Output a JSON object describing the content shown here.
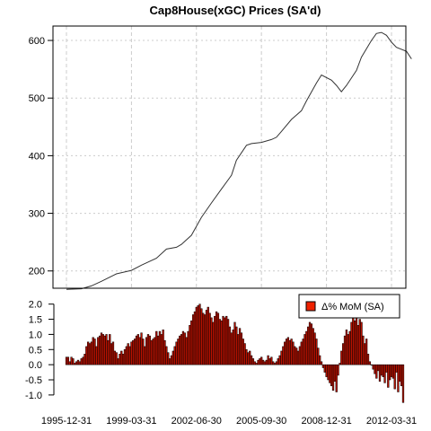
{
  "chart_data": [
    {
      "type": "line",
      "title": "Cap8House(xGC) Prices (SA'd)",
      "ylim": [
        170,
        625
      ],
      "yticks": [
        200,
        300,
        400,
        500,
        600
      ],
      "x_range": [
        "1995-12-31",
        "2013-05-31"
      ],
      "grid": true,
      "colors": {
        "line": "#333333",
        "grid": "#cccccc"
      },
      "series": [
        {
          "points": [
            [
              "1995-12-31",
              168
            ],
            [
              "1996-09-30",
              169
            ],
            [
              "1997-03-31",
              174
            ],
            [
              "1997-09-30",
              182
            ],
            [
              "1998-06-30",
              195
            ],
            [
              "1999-03-31",
              201
            ],
            [
              "1999-09-30",
              210
            ],
            [
              "2000-06-30",
              222
            ],
            [
              "2000-12-31",
              238
            ],
            [
              "2001-06-30",
              241
            ],
            [
              "2001-09-30",
              246
            ],
            [
              "2002-03-31",
              262
            ],
            [
              "2002-09-30",
              293
            ],
            [
              "2003-03-31",
              318
            ],
            [
              "2003-09-30",
              342
            ],
            [
              "2004-03-31",
              366
            ],
            [
              "2004-06-30",
              392
            ],
            [
              "2004-12-31",
              418
            ],
            [
              "2005-03-31",
              421
            ],
            [
              "2005-09-30",
              423
            ],
            [
              "2006-03-31",
              428
            ],
            [
              "2006-06-30",
              432
            ],
            [
              "2006-09-30",
              442
            ],
            [
              "2007-03-31",
              463
            ],
            [
              "2007-09-30",
              478
            ],
            [
              "2007-12-31",
              495
            ],
            [
              "2008-06-30",
              526
            ],
            [
              "2008-09-30",
              540
            ],
            [
              "2009-03-31",
              531
            ],
            [
              "2009-06-30",
              522
            ],
            [
              "2009-09-30",
              511
            ],
            [
              "2009-12-31",
              522
            ],
            [
              "2010-06-30",
              548
            ],
            [
              "2010-09-30",
              571
            ],
            [
              "2011-03-31",
              600
            ],
            [
              "2011-06-30",
              612
            ],
            [
              "2011-09-30",
              614
            ],
            [
              "2011-12-31",
              609
            ],
            [
              "2012-03-31",
              597
            ],
            [
              "2012-06-30",
              588
            ],
            [
              "2012-12-31",
              581
            ],
            [
              "2013-03-31",
              568
            ]
          ]
        }
      ]
    },
    {
      "type": "bar",
      "legend": "Δ% MoM (SA)",
      "legend_position": "top-right",
      "ylim": [
        -1.3,
        2.05
      ],
      "yticks": [
        "2.0",
        "1.5",
        "1.0",
        "0.5",
        "0.0",
        "-0.5",
        "-1.0"
      ],
      "xticks": [
        "1995-12-31",
        "1999-03-31",
        "2002-06-30",
        "2005-09-30",
        "2008-12-31",
        "2012-03-31"
      ],
      "start": "1995-12",
      "colors": {
        "bar": "#bb1100",
        "edge": "#000000",
        "legend_fill": "#ee2200"
      },
      "values": [
        0.25,
        0.25,
        0.1,
        0.25,
        0.2,
        0.05,
        0.1,
        0.15,
        0.1,
        0.2,
        0.25,
        0.35,
        0.6,
        0.75,
        0.7,
        0.75,
        0.9,
        0.85,
        0.6,
        0.9,
        0.95,
        1.05,
        1.0,
        0.95,
        1.0,
        0.8,
        1.0,
        0.7,
        0.75,
        0.45,
        0.4,
        0.2,
        0.35,
        0.45,
        0.35,
        0.5,
        0.6,
        0.7,
        0.6,
        0.75,
        0.8,
        0.85,
        0.95,
        1.0,
        0.9,
        1.05,
        0.85,
        0.6,
        0.9,
        1.0,
        0.95,
        0.8,
        0.85,
        0.9,
        1.1,
        0.95,
        1.1,
        1.0,
        1.15,
        0.8,
        0.6,
        0.4,
        0.2,
        0.3,
        0.45,
        0.6,
        0.75,
        0.85,
        0.95,
        1.0,
        1.1,
        1.05,
        0.9,
        1.1,
        1.3,
        1.45,
        1.65,
        1.75,
        1.9,
        1.95,
        2.0,
        1.85,
        1.7,
        1.65,
        1.8,
        1.9,
        1.7,
        1.55,
        1.4,
        1.6,
        1.75,
        1.7,
        1.5,
        1.45,
        1.6,
        1.55,
        1.6,
        1.5,
        1.25,
        1.05,
        1.15,
        1.4,
        1.25,
        1.0,
        1.2,
        1.05,
        0.85,
        0.7,
        0.5,
        0.4,
        0.45,
        0.3,
        0.2,
        0.1,
        0.05,
        0.15,
        0.2,
        0.25,
        0.15,
        0.1,
        0.15,
        0.3,
        0.2,
        0.25,
        0.1,
        0.05,
        0.1,
        0.2,
        0.3,
        0.45,
        0.6,
        0.75,
        0.85,
        0.9,
        0.8,
        0.85,
        0.75,
        0.6,
        0.55,
        0.45,
        0.6,
        0.75,
        0.85,
        1.0,
        1.1,
        1.25,
        1.4,
        1.35,
        1.2,
        1.05,
        0.85,
        0.55,
        0.3,
        0.1,
        -0.1,
        -0.25,
        -0.4,
        -0.5,
        -0.6,
        -0.7,
        -0.85,
        -0.55,
        -0.9,
        -0.35,
        0.05,
        0.45,
        0.7,
        0.95,
        1.15,
        1.0,
        1.1,
        1.4,
        1.55,
        1.45,
        1.75,
        1.3,
        1.5,
        1.4,
        0.95,
        0.7,
        0.85,
        0.35,
        0.1,
        0.0,
        -0.15,
        -0.3,
        -0.45,
        -0.2,
        -0.55,
        -0.35,
        -0.4,
        -0.6,
        -0.25,
        -0.75,
        -0.5,
        -0.4,
        -0.45,
        -0.8,
        -0.25,
        -0.9,
        -0.55,
        -0.7,
        -1.25
      ]
    }
  ]
}
